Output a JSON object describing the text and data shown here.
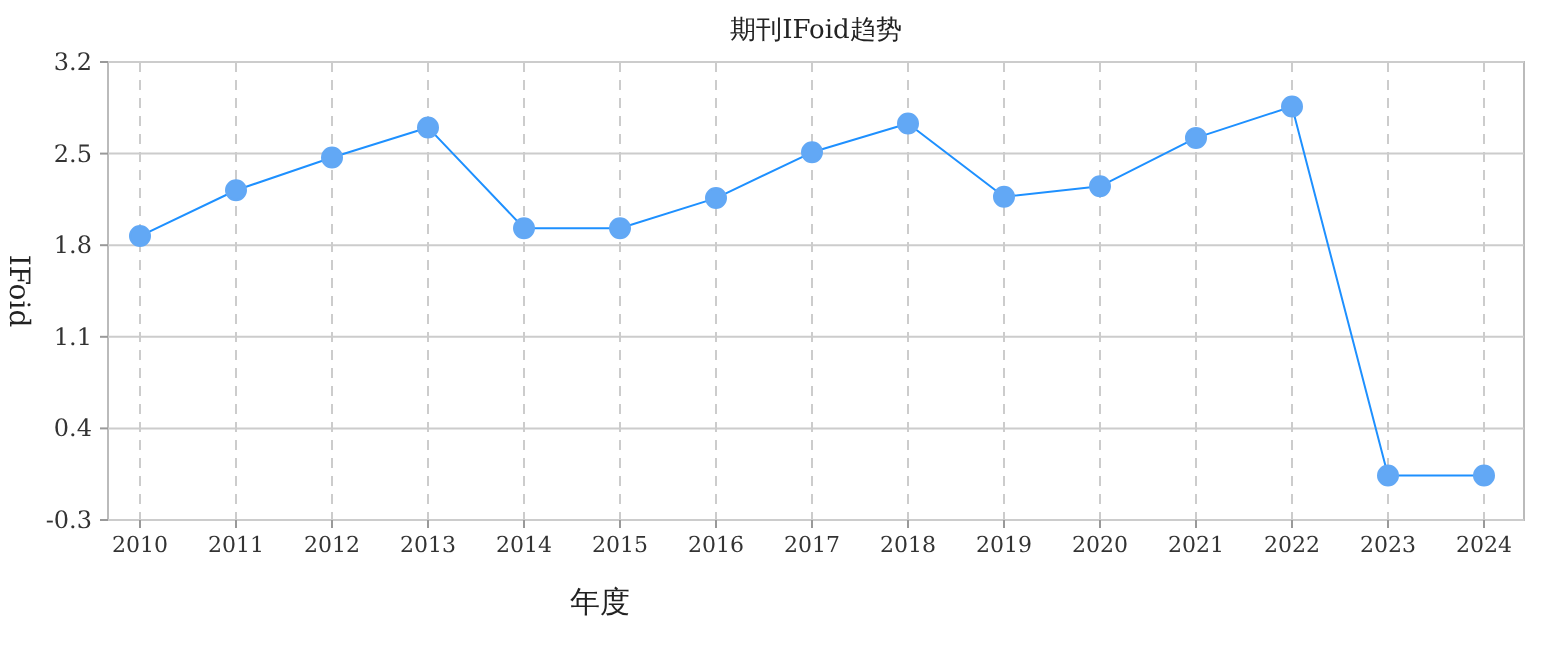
{
  "chart_data": {
    "type": "line",
    "title": "期刊IFoid趋势",
    "xlabel": "年度",
    "ylabel": "IFoid",
    "categories": [
      "2010",
      "2011",
      "2012",
      "2013",
      "2014",
      "2015",
      "2016",
      "2017",
      "2018",
      "2019",
      "2020",
      "2021",
      "2022",
      "2023",
      "2024"
    ],
    "series": [
      {
        "color": "#1e90ff",
        "values": [
          1.87,
          2.22,
          2.47,
          2.7,
          1.93,
          1.93,
          2.16,
          2.51,
          2.73,
          2.17,
          2.25,
          2.62,
          2.86,
          0.04,
          0.04
        ]
      }
    ],
    "ylim": [
      -0.3,
      3.2
    ],
    "yticks": [
      -0.3,
      0.4,
      1.1,
      1.8,
      2.5,
      3.2
    ],
    "grid": true,
    "marker": "circle",
    "line_style": "solid"
  }
}
